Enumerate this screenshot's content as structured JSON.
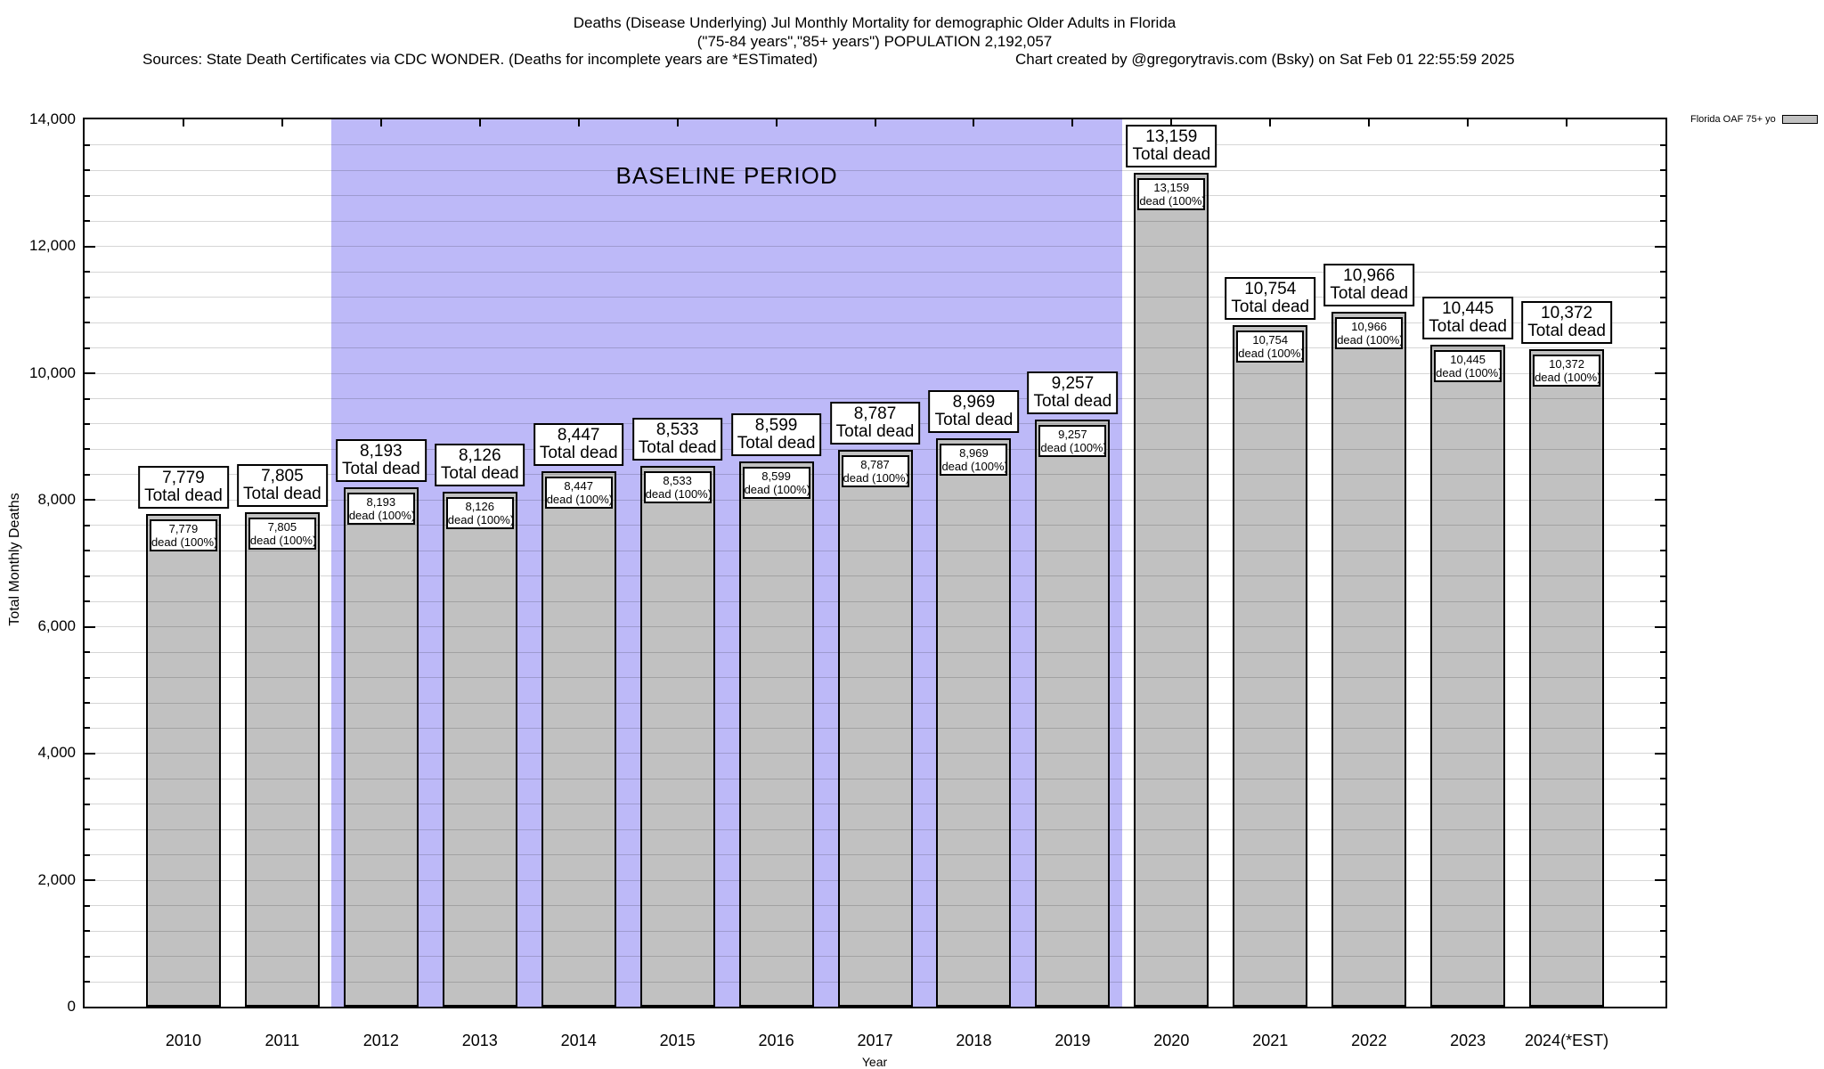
{
  "header": {
    "title_line1": "Deaths (Disease Underlying) Jul Monthly Mortality for demographic Older Adults in Florida",
    "title_line2": "(\"75-84 years\",\"85+ years\") POPULATION 2,192,057",
    "sources": "Sources: State Death Certificates via CDC WONDER. (Deaths for incomplete years are *ESTimated)",
    "credit": "Chart created by @gregorytravis.com (Bsky) on Sat Feb 01 22:55:59 2025"
  },
  "legend": {
    "label": "Florida OAF 75+ yo",
    "swatch_color": "#c1c1c1"
  },
  "chart_data": {
    "type": "bar",
    "title": "Deaths (Disease Underlying) Jul Monthly Mortality for demographic Older Adults in Florida",
    "xlabel": "Year",
    "ylabel": "Total Monthly Deaths",
    "xlim": [
      2009,
      2025
    ],
    "ylim": [
      0,
      14000
    ],
    "ytick_step": 2000,
    "minor_grid_step": 400,
    "grid": true,
    "legend_position": "top-right",
    "ytick_labels": [
      "0",
      "2,000",
      "4,000",
      "6,000",
      "8,000",
      "10,000",
      "12,000",
      "14,000"
    ],
    "categories": [
      "2010",
      "2011",
      "2012",
      "2013",
      "2014",
      "2015",
      "2016",
      "2017",
      "2018",
      "2019",
      "2020",
      "2021",
      "2022",
      "2023",
      "2024(*EST)"
    ],
    "series": [
      {
        "name": "Florida OAF 75+ yo",
        "color": "#c1c1c1",
        "values": [
          7779,
          7805,
          8193,
          8126,
          8447,
          8533,
          8599,
          8787,
          8969,
          9257,
          13159,
          10754,
          10966,
          10445,
          10372
        ],
        "value_labels": [
          "7,779",
          "7,805",
          "8,193",
          "8,126",
          "8,447",
          "8,533",
          "8,599",
          "8,787",
          "8,969",
          "9,257",
          "13,159",
          "10,754",
          "10,966",
          "10,445",
          "10,372"
        ]
      }
    ],
    "bar_outer_label_suffix": "Total dead",
    "bar_inner_label_suffix": "dead (100%)",
    "baseline_region": {
      "label": "BASELINE PERIOD",
      "from": 2011.5,
      "to": 2019.5,
      "color": "#bdb9f8"
    }
  }
}
